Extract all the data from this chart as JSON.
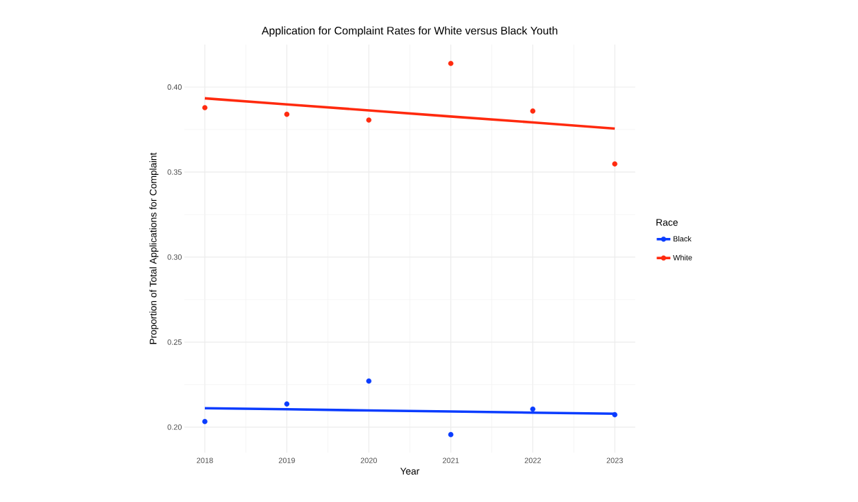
{
  "chart_data": {
    "type": "scatter",
    "title": "Application for Complaint Rates for White versus Black Youth",
    "xlabel": "Year",
    "ylabel": "Proportion of Total Applications for Complaint",
    "legend_title": "Race",
    "x": [
      2018,
      2019,
      2020,
      2021,
      2022,
      2023
    ],
    "series": [
      {
        "name": "Black",
        "color": "#0a3cff",
        "values": [
          0.2033,
          0.2136,
          0.2271,
          0.1956,
          0.2106,
          0.2073
        ]
      },
      {
        "name": "White",
        "color": "#ff2a0e",
        "values": [
          0.3879,
          0.384,
          0.3806,
          0.4139,
          0.3859,
          0.3548
        ]
      },
      {
        "type": "line",
        "marker": "none",
        "color": "#0a3cff",
        "values": [
          0.2111,
          0.2105,
          0.2098,
          0.2092,
          0.2085,
          0.2079
        ]
      },
      {
        "type": "line",
        "marker": "none",
        "color": "#ff2a0e",
        "values": [
          0.3934,
          0.3898,
          0.3863,
          0.3827,
          0.3792,
          0.3756
        ]
      }
    ],
    "xlim": [
      2017.75,
      2023.25
    ],
    "ylim": [
      0.185,
      0.425
    ],
    "xticks": [
      2018,
      2019,
      2020,
      2021,
      2022,
      2023
    ],
    "yticks": [
      {
        "value": 0.2,
        "label": "0.20"
      },
      {
        "value": 0.25,
        "label": "0.25"
      },
      {
        "value": 0.3,
        "label": "0.30"
      },
      {
        "value": 0.35,
        "label": "0.35"
      },
      {
        "value": 0.4,
        "label": "0.40"
      }
    ],
    "grid": true,
    "legend": "right",
    "marker": "circle"
  }
}
